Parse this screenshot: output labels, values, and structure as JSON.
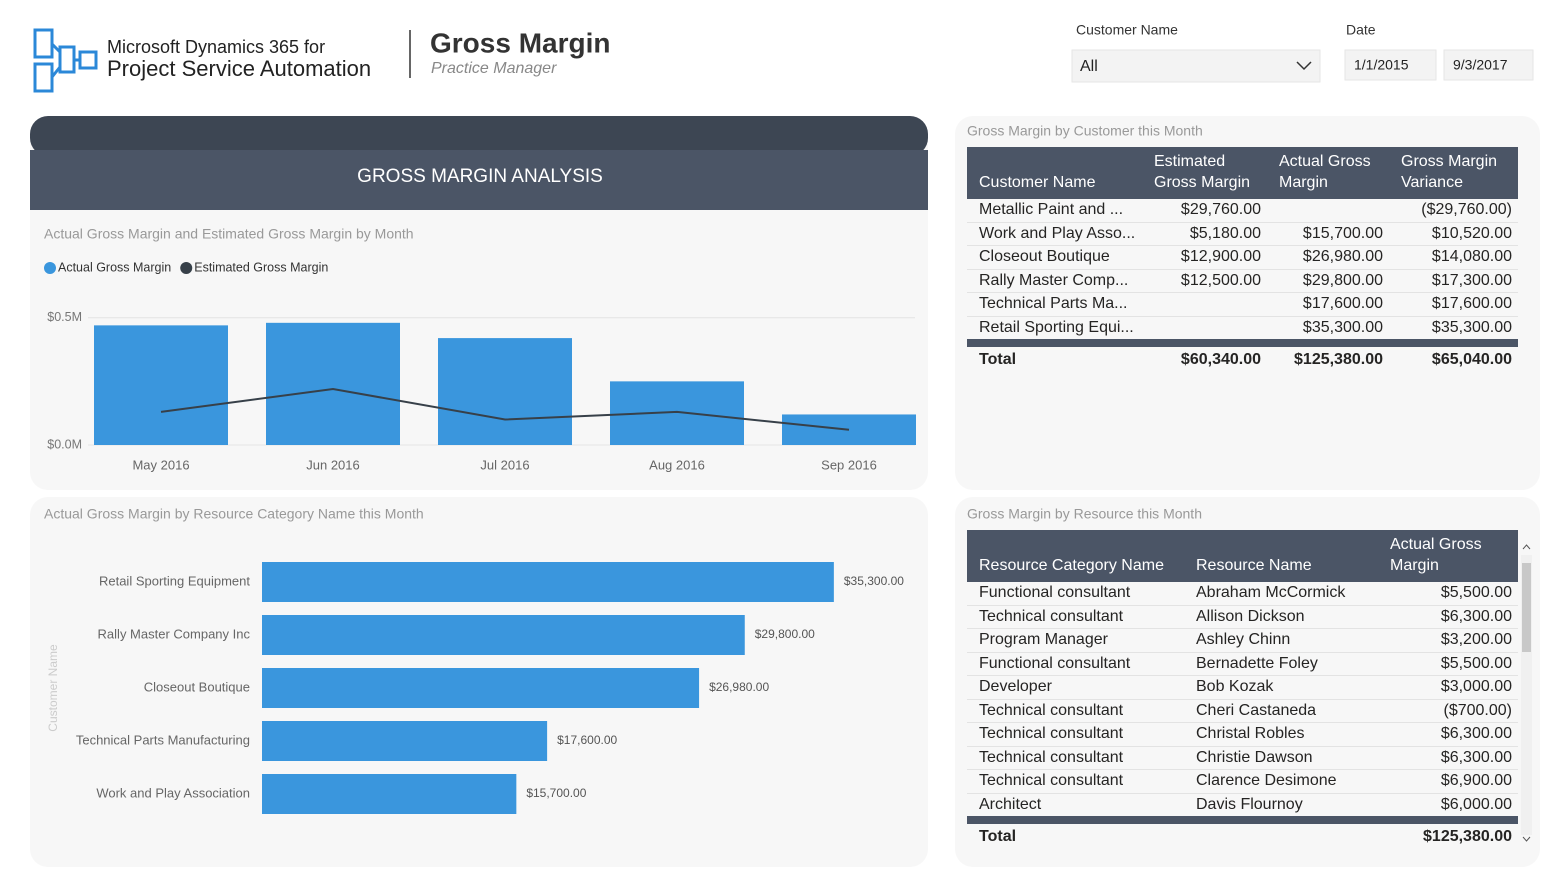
{
  "header": {
    "product_line1": "Microsoft Dynamics 365 for",
    "product_line2": "Project Service Automation",
    "title": "Gross Margin",
    "subtitle": "Practice Manager"
  },
  "filters": {
    "customer_label": "Customer Name",
    "customer_value": "All",
    "date_label": "Date",
    "date_start": "1/1/2015",
    "date_end": "9/3/2017"
  },
  "section_title": "GROSS MARGIN ANALYSIS",
  "chart_data": [
    {
      "type": "combo",
      "title": "Actual Gross Margin and Estimated Gross Margin by Month",
      "categories": [
        "May 2016",
        "Jun 2016",
        "Jul 2016",
        "Aug 2016",
        "Sep 2016"
      ],
      "series": [
        {
          "name": "Actual Gross Margin",
          "type": "bar",
          "color": "#3a96dd",
          "values": [
            470000,
            480000,
            420000,
            250000,
            120000
          ]
        },
        {
          "name": "Estimated Gross Margin",
          "type": "line",
          "color": "#374049",
          "values": [
            130000,
            220000,
            100000,
            130000,
            60000
          ]
        }
      ],
      "ylim": [
        0,
        550000
      ],
      "yticks": [
        {
          "value": 0,
          "label": "$0.0M"
        },
        {
          "value": 500000,
          "label": "$0.5M"
        }
      ],
      "grid": true
    },
    {
      "type": "hbar",
      "title": "Actual Gross Margin by Resource Category Name this Month",
      "y_label": "Customer Name",
      "categories": [
        "Retail Sporting Equipment",
        "Rally Master Company Inc",
        "Closeout Boutique",
        "Technical Parts Manufacturing",
        "Work and Play Association"
      ],
      "values": [
        35300,
        29800,
        26980,
        17600,
        15700
      ],
      "value_labels": [
        "$35,300.00",
        "$29,800.00",
        "$26,980.00",
        "$17,600.00",
        "$15,700.00"
      ],
      "color": "#3a96dd",
      "xlim": [
        0,
        40000
      ]
    }
  ],
  "tables": [
    {
      "title": "Gross Margin by Customer this Month",
      "columns": [
        "Customer Name",
        "Estimated Gross Margin",
        "Actual Gross Margin",
        "Gross Margin Variance"
      ],
      "rows": [
        [
          "Metallic Paint and ...",
          "$29,760.00",
          null,
          "($29,760.00)"
        ],
        [
          "Work and Play Asso...",
          "$5,180.00",
          "$15,700.00",
          "$10,520.00"
        ],
        [
          "Closeout Boutique",
          "$12,900.00",
          "$26,980.00",
          "$14,080.00"
        ],
        [
          "Rally Master Comp...",
          "$12,500.00",
          "$29,800.00",
          "$17,300.00"
        ],
        [
          "Technical Parts Ma...",
          null,
          "$17,600.00",
          "$17,600.00"
        ],
        [
          "Retail Sporting Equi...",
          null,
          "$35,300.00",
          "$35,300.00"
        ]
      ],
      "total": [
        "Total",
        "$60,340.00",
        "$125,380.00",
        "$65,040.00"
      ]
    },
    {
      "title": "Gross Margin by Resource this Month",
      "columns": [
        "Resource Category Name",
        "Resource Name",
        "Actual Gross Margin"
      ],
      "rows": [
        [
          "Functional consultant",
          "Abraham McCormick",
          "$5,500.00"
        ],
        [
          "Technical consultant",
          "Allison Dickson",
          "$6,300.00"
        ],
        [
          "Program Manager",
          "Ashley Chinn",
          "$3,200.00"
        ],
        [
          "Functional consultant",
          "Bernadette Foley",
          "$5,500.00"
        ],
        [
          "Developer",
          "Bob Kozak",
          "$3,000.00"
        ],
        [
          "Technical consultant",
          "Cheri Castaneda",
          "($700.00)"
        ],
        [
          "Technical consultant",
          "Christal Robles",
          "$6,300.00"
        ],
        [
          "Technical consultant",
          "Christie Dawson",
          "$6,300.00"
        ],
        [
          "Technical consultant",
          "Clarence Desimone",
          "$6,900.00"
        ],
        [
          "Architect",
          "Davis Flournoy",
          "$6,000.00"
        ]
      ],
      "total": [
        "Total",
        null,
        "$125,380.00"
      ]
    }
  ]
}
